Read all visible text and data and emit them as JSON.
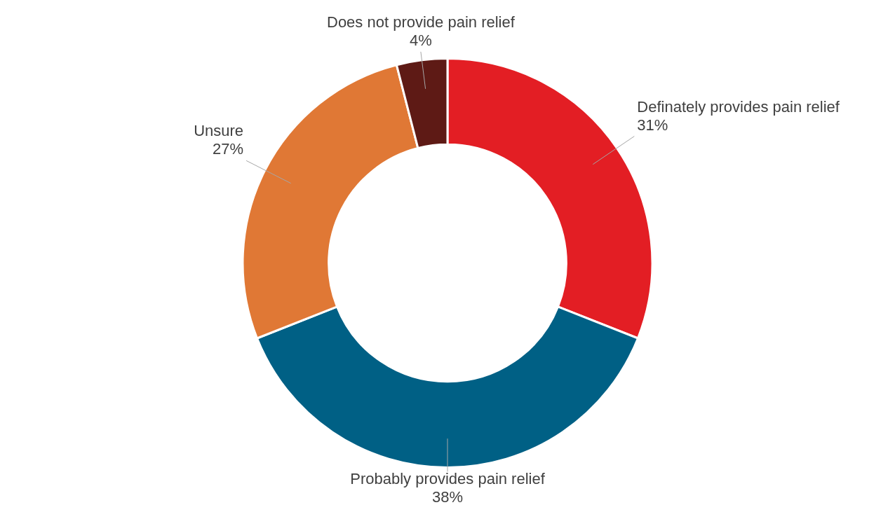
{
  "chart_data": {
    "type": "donut",
    "categories": [
      "Definately provides pain relief",
      "Probably provides pain relief",
      "Unsure",
      "Does not provide pain relief"
    ],
    "values": [
      31,
      38,
      27,
      4
    ],
    "colors": [
      "#e31e24",
      "#006085",
      "#e07835",
      "#5e1a15"
    ],
    "value_labels": [
      "31%",
      "38%",
      "27%",
      "4%"
    ],
    "legend": false
  }
}
